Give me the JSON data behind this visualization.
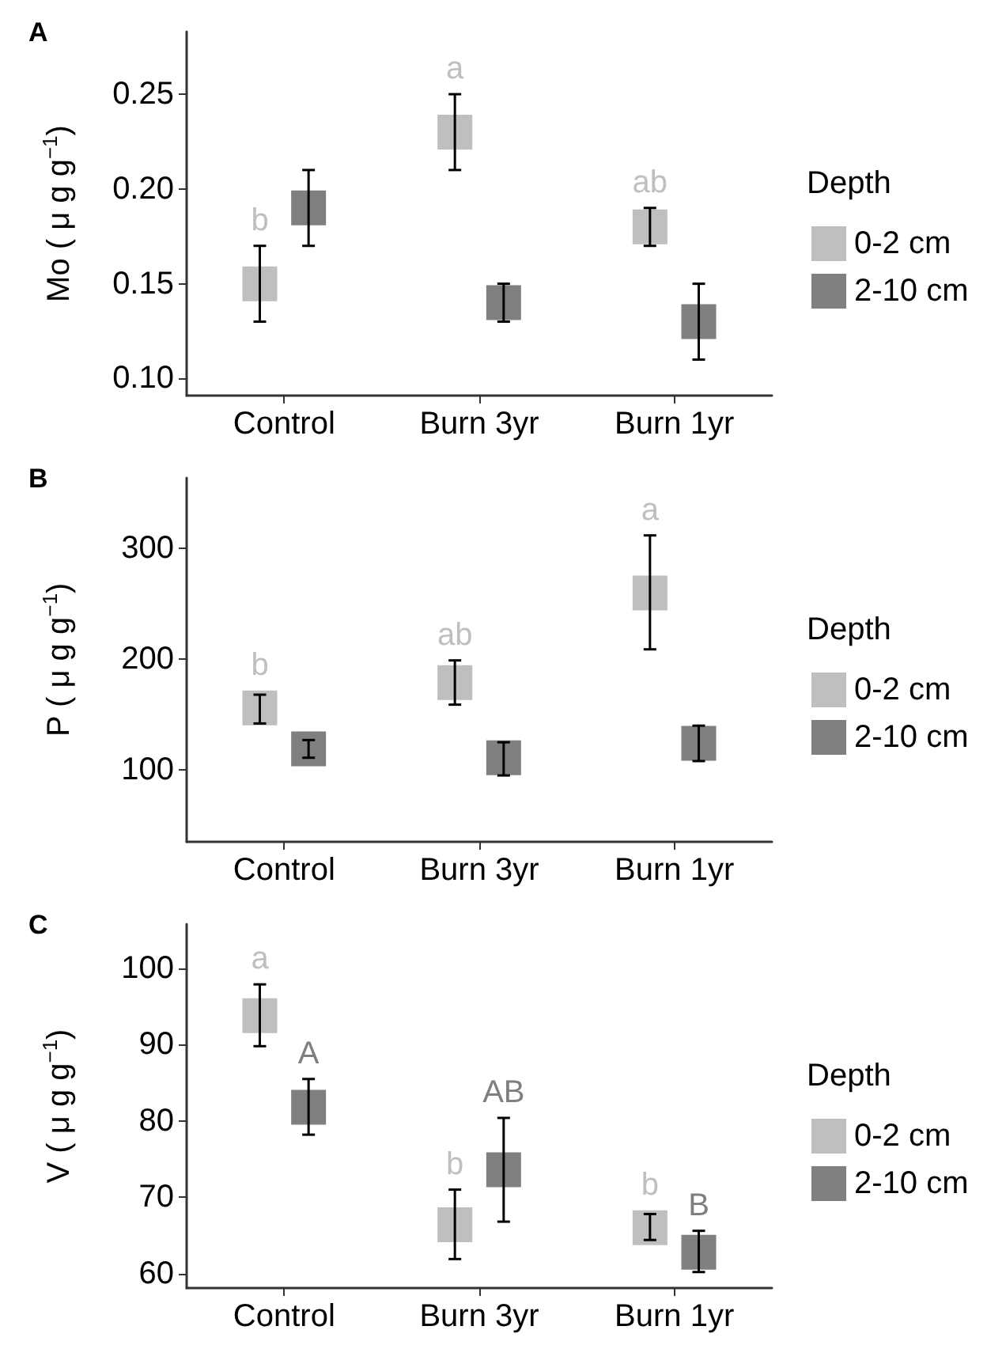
{
  "chart_data": [
    {
      "type": "scatter",
      "title": "A",
      "ylabel": "Mo ( μ g g$^{−1}$)",
      "legend_title": "Depth",
      "legend": "right",
      "marker": "square",
      "grid": false,
      "categories": [
        "Control",
        "Burn 3yr",
        "Burn 1yr"
      ],
      "ylim": [
        0.091,
        0.283
      ],
      "yticks": [
        {
          "value": 0.1,
          "label": "0.10"
        },
        0.15,
        {
          "value": 0.2,
          "label": "0.20"
        },
        0.25
      ],
      "series": [
        {
          "name": "0-2 cm",
          "color": "#bfbfbf",
          "values": [
            0.15,
            0.23,
            0.18
          ],
          "errors": [
            [
              0.13,
              0.17
            ],
            [
              0.21,
              0.25
            ],
            [
              0.17,
              0.19
            ]
          ],
          "value_labels": [
            "b",
            "a",
            "ab"
          ]
        },
        {
          "name": "2-10 cm",
          "color": "#7f7f7f",
          "values": [
            0.19,
            0.14,
            0.13
          ],
          "errors": [
            [
              0.17,
              0.21
            ],
            [
              0.13,
              0.15
            ],
            [
              0.11,
              0.15
            ]
          ]
        }
      ]
    },
    {
      "type": "scatter",
      "title": "B",
      "ylabel": "P ( μ g g$^{−1}$)",
      "legend_title": "Depth",
      "legend": "right",
      "marker": "square",
      "grid": false,
      "categories": [
        "Control",
        "Burn 3yr",
        "Burn 1yr"
      ],
      "ylim": [
        35,
        364
      ],
      "yticks": [
        100,
        200,
        300
      ],
      "series": [
        {
          "name": "0-2 cm",
          "color": "#bfbfbf",
          "values": [
            156,
            179,
            260
          ],
          "errors": [
            [
              142,
              168
            ],
            [
              159,
              199
            ],
            [
              209,
              312
            ]
          ],
          "value_labels": [
            "b",
            "ab",
            "a"
          ]
        },
        {
          "name": "2-10 cm",
          "color": "#7f7f7f",
          "values": [
            119,
            111,
            124
          ],
          "errors": [
            [
              111,
              127
            ],
            [
              95,
              125
            ],
            [
              108,
              140
            ]
          ]
        }
      ]
    },
    {
      "type": "scatter",
      "title": "C",
      "ylabel": "V ( μ g g$^{−1}$)",
      "legend_title": "Depth",
      "legend": "right",
      "marker": "square",
      "grid": false,
      "categories": [
        "Control",
        "Burn 3yr",
        "Burn 1yr"
      ],
      "ylim": [
        58.1,
        105.8
      ],
      "yticks": [
        60,
        70,
        80,
        90,
        100
      ],
      "series": [
        {
          "name": "0-2 cm",
          "color": "#bfbfbf",
          "values": [
            93.8,
            66.4,
            66
          ],
          "errors": [
            [
              89.8,
              97.9
            ],
            [
              61.9,
              71
            ],
            [
              64.4,
              67.8
            ]
          ],
          "value_labels": [
            "a",
            "b",
            "b"
          ]
        },
        {
          "name": "2-10 cm",
          "color": "#7f7f7f",
          "values": [
            81.8,
            73.6,
            62.8
          ],
          "errors": [
            [
              78.2,
              85.5
            ],
            [
              66.8,
              80.4
            ],
            [
              60.2,
              65.6
            ]
          ],
          "value_labels": [
            "A",
            "AB",
            "B"
          ]
        }
      ]
    }
  ]
}
